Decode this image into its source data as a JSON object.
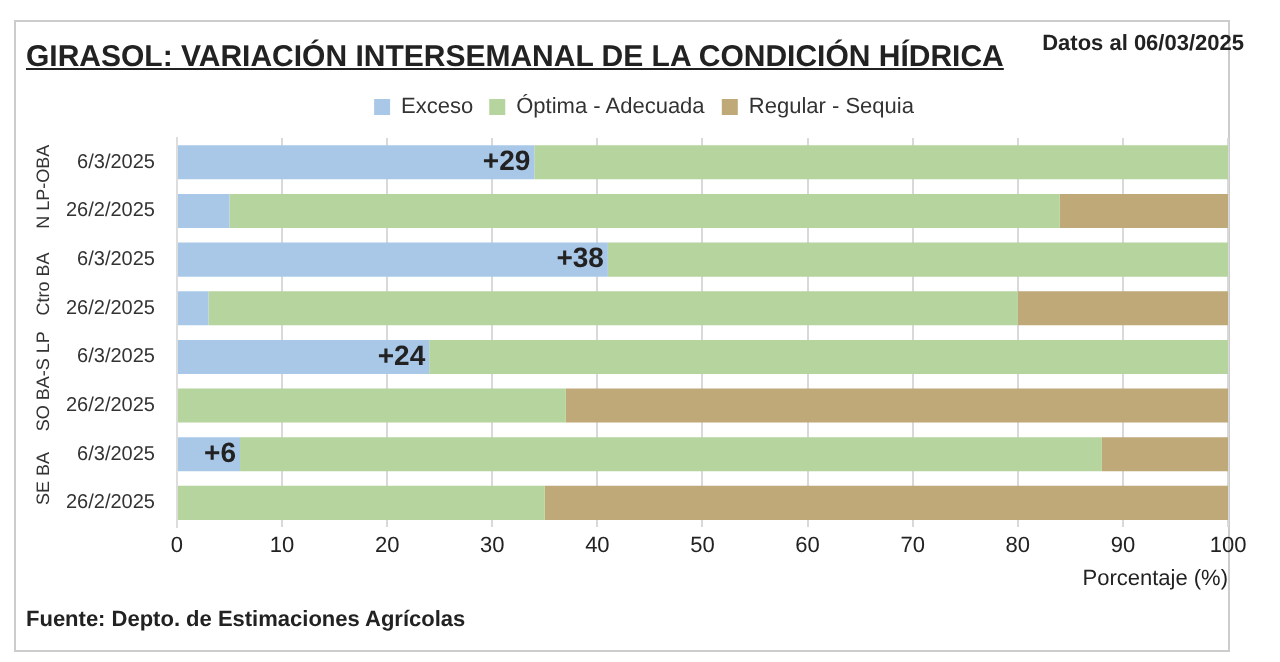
{
  "chart_data": {
    "type": "bar",
    "orientation": "horizontal",
    "stacked": true,
    "title": "GIRASOL: VARIACIÓN INTERSEMANAL DE LA CONDICIÓN HÍDRICA",
    "subtitle": "Datos al 06/03/2025",
    "xlabel": "Porcentaje (%)",
    "categories": [
      "6/3/2025",
      "26/2/2025",
      "6/3/2025",
      "26/2/2025",
      "6/3/2025",
      "26/2/2025",
      "6/3/2025",
      "26/2/2025"
    ],
    "series": [
      {
        "name": "Exceso",
        "color": "#a9c8e8",
        "values": [
          34,
          5,
          41,
          3,
          24,
          0,
          6,
          0
        ]
      },
      {
        "name": "Óptima - Adecuada",
        "color": "#b5d49e",
        "values": [
          66,
          79,
          59,
          77,
          76,
          37,
          82,
          35
        ]
      },
      {
        "name": "Regular - Sequia",
        "color": "#bfa978",
        "values": [
          0,
          16,
          0,
          20,
          0,
          63,
          12,
          65
        ]
      }
    ],
    "xlim": [
      0,
      100
    ],
    "xticks": [
      0,
      10,
      20,
      30,
      40,
      50,
      60,
      70,
      80,
      90,
      100
    ],
    "grid": "x",
    "legend": "top",
    "annotations": [
      "Fuente: Depto. de Estimaciones Agrícolas",
      "N LP-OBA",
      "Ctro BA",
      "SO BA-S LP",
      "SE BA",
      "+29",
      "+38",
      "+24",
      "+6"
    ]
  }
}
